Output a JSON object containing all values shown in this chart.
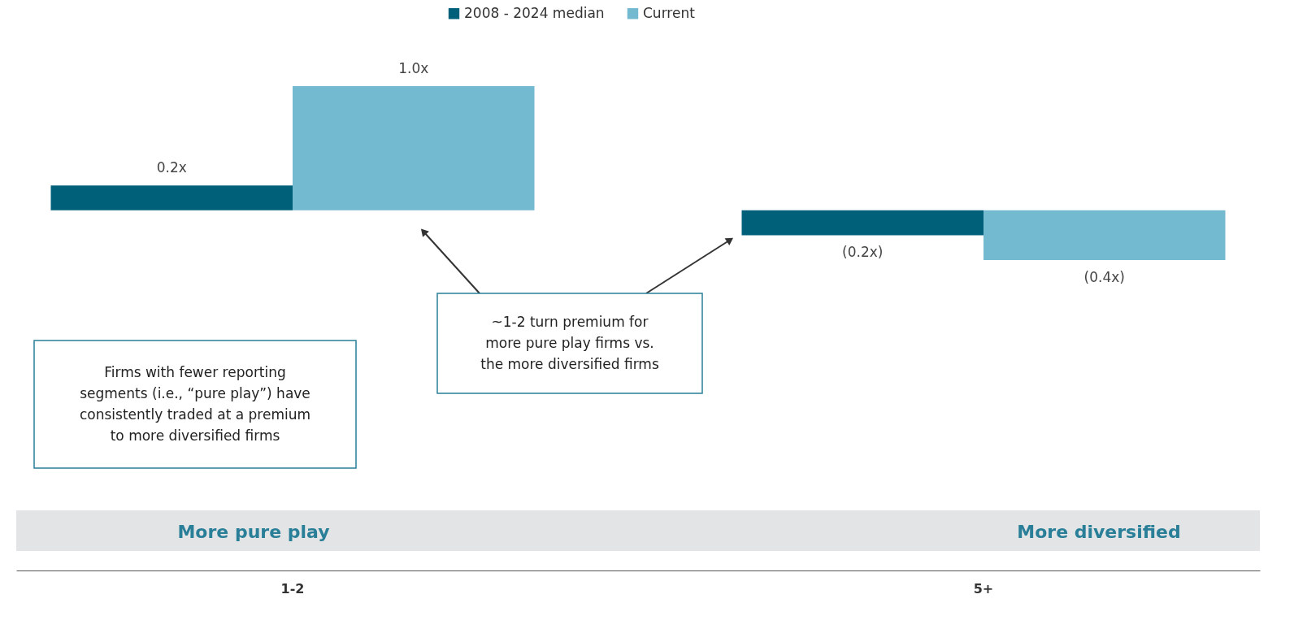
{
  "chart_data": {
    "type": "bar",
    "categories": [
      "1-2",
      "5+"
    ],
    "series": [
      {
        "name": "2008 -  2024 median",
        "color": "#00607a",
        "values": [
          0.2,
          -0.2
        ],
        "value_labels": [
          "0.2x",
          "(0.2x)"
        ]
      },
      {
        "name": "Current",
        "color": "#73b9cf",
        "values": [
          1.0,
          -0.4
        ],
        "value_labels": [
          "1.0x",
          "(0.4x)"
        ]
      }
    ],
    "legend": "top",
    "annotations": [
      "Firms with fewer reporting\nsegments (i.e., “pure play”) have\nconsistently traded at a premium\nto more diversified firms",
      "~1-2 turn premium for\nmore pure play firms vs.\nthe more diversified firms",
      "More pure play",
      "More diversified"
    ]
  }
}
